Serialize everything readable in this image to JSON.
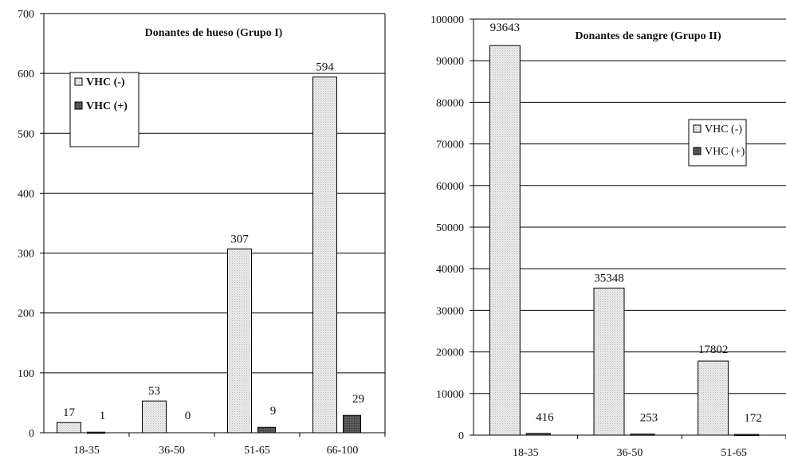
{
  "chart_data": [
    {
      "type": "bar",
      "title": "Donantes de hueso (Grupo I)",
      "xlabel": "",
      "ylabel": "",
      "categories": [
        "18-35",
        "36-50",
        "51-65",
        "66-100"
      ],
      "series": [
        {
          "name": "VHC (-)",
          "values": [
            17,
            53,
            307,
            594
          ]
        },
        {
          "name": "VHC (+)",
          "values": [
            1,
            0,
            9,
            29
          ]
        }
      ],
      "ylim": [
        0,
        700
      ],
      "yticks": [
        0,
        100,
        200,
        300,
        400,
        500,
        600,
        700
      ],
      "grid": true,
      "legend_position": "top-left"
    },
    {
      "type": "bar",
      "title": "Donantes de sangre (Grupo II)",
      "xlabel": "",
      "ylabel": "",
      "categories": [
        "18-35",
        "36-50",
        "51-65"
      ],
      "series": [
        {
          "name": "VHC (-)",
          "values": [
            93643,
            35348,
            17802
          ]
        },
        {
          "name": "VHC (+)",
          "values": [
            416,
            253,
            172
          ]
        }
      ],
      "ylim": [
        0,
        100000
      ],
      "yticks": [
        0,
        10000,
        20000,
        30000,
        40000,
        50000,
        60000,
        70000,
        80000,
        90000,
        100000
      ],
      "grid": true,
      "legend_position": "right"
    }
  ],
  "colors": {
    "negative_fill": "#e4e4e4",
    "positive_fill": "#4a4a4a",
    "grid": "#000000",
    "axis": "#000000"
  }
}
